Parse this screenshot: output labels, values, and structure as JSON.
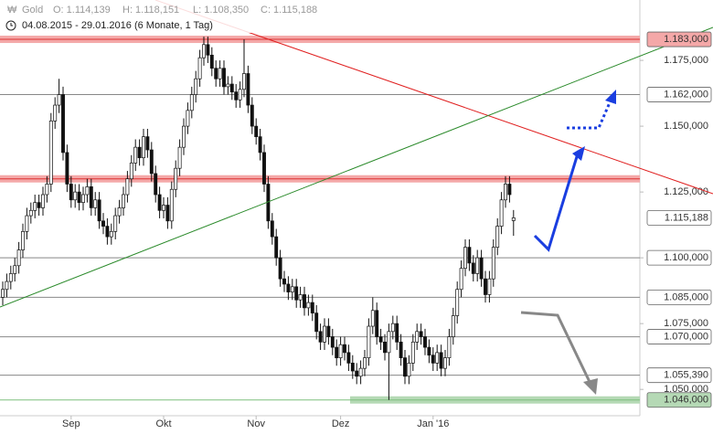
{
  "chart_data": {
    "type": "candlestick",
    "title": "Gold",
    "quote": [
      "O: 1.114,139",
      "H: 1.118,151",
      "L: 1.108,350",
      "C: 1.115,188"
    ],
    "subtitle": "04.08.2015 - 29.01.2016 (6 Monate, 1 Tag)",
    "categories": [
      null,
      null,
      null,
      null,
      null,
      null,
      null,
      null,
      null,
      null,
      null,
      null,
      null,
      null,
      null,
      null,
      null,
      "Sep",
      null,
      null,
      null,
      null,
      null,
      null,
      null,
      null,
      null,
      null,
      null,
      null,
      null,
      null,
      null,
      null,
      null,
      null,
      null,
      null,
      null,
      null,
      "Okt",
      null,
      null,
      null,
      null,
      null,
      null,
      null,
      null,
      null,
      null,
      null,
      null,
      null,
      null,
      null,
      null,
      null,
      null,
      null,
      null,
      null,
      null,
      "Nov",
      null,
      null,
      null,
      null,
      null,
      null,
      null,
      null,
      null,
      null,
      null,
      null,
      null,
      null,
      null,
      null,
      null,
      null,
      null,
      null,
      "Dez",
      null,
      null,
      null,
      null,
      null,
      null,
      null,
      null,
      null,
      null,
      null,
      null,
      null,
      null,
      null,
      null,
      null,
      null,
      null,
      null,
      null,
      null,
      "Jan '16",
      null,
      null,
      null,
      null,
      null,
      null,
      null,
      null,
      null,
      null,
      null,
      null,
      null,
      null,
      null,
      null,
      null,
      null,
      null,
      null
    ],
    "open": [
      1085,
      1088,
      1091,
      1094,
      1097,
      1103,
      1110,
      1116,
      1118,
      1121,
      1119,
      1124,
      1128,
      1152,
      1158,
      1162,
      1140,
      1128,
      1122,
      1125,
      1121,
      1124,
      1127,
      1119,
      1122,
      1114,
      1112,
      1108,
      1110,
      1116,
      1119,
      1124,
      1130,
      1136,
      1142,
      1138,
      1146,
      1141,
      1132,
      1124,
      1118,
      1120,
      1114,
      1126,
      1134,
      1142,
      1150,
      1156,
      1162,
      1168,
      1176,
      1181,
      1177,
      1172,
      1168,
      1172,
      1165,
      1166,
      1163,
      1160,
      1164,
      1170,
      1158,
      1150,
      1146,
      1140,
      1128,
      1114,
      1108,
      1100,
      1092,
      1090,
      1087,
      1089,
      1084,
      1086,
      1081,
      1083,
      1079,
      1072,
      1068,
      1074,
      1070,
      1066,
      1062,
      1067,
      1064,
      1060,
      1057,
      1055,
      1058,
      1062,
      1074,
      1080,
      1070,
      1068,
      1064,
      1072,
      1075,
      1068,
      1062,
      1055,
      1060,
      1068,
      1072,
      1070,
      1066,
      1063,
      1060,
      1064,
      1058,
      1062,
      1070,
      1078,
      1088,
      1096,
      1104,
      1098,
      1094,
      1100,
      1092,
      1086,
      1092,
      1104,
      1112,
      1122,
      1128,
      1114.139
    ],
    "high": [
      1091,
      1094,
      1097,
      1100,
      1106,
      1113,
      1119,
      1121,
      1124,
      1124,
      1127,
      1131,
      1155,
      1161,
      1168,
      1165,
      1143,
      1131,
      1128,
      1128,
      1127,
      1130,
      1130,
      1125,
      1125,
      1117,
      1115,
      1113,
      1119,
      1122,
      1127,
      1133,
      1139,
      1145,
      1145,
      1149,
      1149,
      1144,
      1135,
      1127,
      1123,
      1123,
      1129,
      1137,
      1145,
      1153,
      1159,
      1165,
      1171,
      1179,
      1184,
      1184,
      1180,
      1175,
      1175,
      1175,
      1169,
      1169,
      1166,
      1167,
      1183,
      1173,
      1161,
      1153,
      1149,
      1143,
      1131,
      1117,
      1111,
      1103,
      1095,
      1093,
      1092,
      1092,
      1089,
      1089,
      1086,
      1086,
      1082,
      1075,
      1077,
      1077,
      1073,
      1069,
      1070,
      1070,
      1067,
      1063,
      1060,
      1061,
      1065,
      1077,
      1085,
      1083,
      1073,
      1071,
      1075,
      1078,
      1078,
      1071,
      1065,
      1063,
      1071,
      1075,
      1075,
      1073,
      1069,
      1066,
      1067,
      1067,
      1065,
      1073,
      1081,
      1091,
      1099,
      1107,
      1107,
      1101,
      1103,
      1103,
      1095,
      1095,
      1107,
      1115,
      1125,
      1131,
      1131,
      1118.151
    ],
    "low": [
      1082,
      1085,
      1088,
      1091,
      1094,
      1100,
      1107,
      1113,
      1115,
      1116,
      1116,
      1121,
      1125,
      1149,
      1155,
      1137,
      1125,
      1119,
      1119,
      1118,
      1118,
      1121,
      1116,
      1116,
      1111,
      1109,
      1105,
      1105,
      1107,
      1113,
      1116,
      1121,
      1127,
      1133,
      1135,
      1135,
      1138,
      1129,
      1121,
      1115,
      1115,
      1111,
      1111,
      1123,
      1131,
      1139,
      1147,
      1153,
      1159,
      1165,
      1173,
      1174,
      1169,
      1165,
      1165,
      1162,
      1162,
      1160,
      1157,
      1157,
      1161,
      1155,
      1147,
      1143,
      1137,
      1125,
      1111,
      1105,
      1097,
      1089,
      1087,
      1084,
      1084,
      1081,
      1081,
      1078,
      1078,
      1076,
      1069,
      1065,
      1065,
      1067,
      1063,
      1059,
      1059,
      1061,
      1057,
      1054,
      1052,
      1052,
      1055,
      1059,
      1071,
      1067,
      1065,
      1061,
      1046,
      1069,
      1065,
      1059,
      1052,
      1052,
      1057,
      1065,
      1067,
      1063,
      1060,
      1057,
      1057,
      1055,
      1055,
      1059,
      1067,
      1075,
      1085,
      1093,
      1095,
      1091,
      1091,
      1089,
      1083,
      1083,
      1089,
      1101,
      1109,
      1119,
      1121,
      1108.35
    ],
    "close": [
      1088,
      1091,
      1094,
      1097,
      1103,
      1110,
      1116,
      1118,
      1121,
      1119,
      1124,
      1128,
      1152,
      1158,
      1162,
      1140,
      1128,
      1122,
      1125,
      1121,
      1124,
      1127,
      1119,
      1122,
      1114,
      1112,
      1108,
      1110,
      1116,
      1119,
      1124,
      1130,
      1136,
      1142,
      1138,
      1146,
      1141,
      1132,
      1124,
      1118,
      1120,
      1114,
      1126,
      1134,
      1142,
      1150,
      1156,
      1162,
      1168,
      1176,
      1181,
      1177,
      1172,
      1168,
      1172,
      1165,
      1166,
      1163,
      1160,
      1164,
      1170,
      1158,
      1150,
      1146,
      1140,
      1128,
      1114,
      1108,
      1100,
      1092,
      1090,
      1087,
      1089,
      1084,
      1086,
      1081,
      1083,
      1079,
      1072,
      1068,
      1074,
      1070,
      1066,
      1062,
      1067,
      1064,
      1060,
      1057,
      1055,
      1058,
      1062,
      1074,
      1080,
      1070,
      1068,
      1064,
      1072,
      1075,
      1068,
      1062,
      1055,
      1060,
      1068,
      1072,
      1070,
      1066,
      1063,
      1060,
      1064,
      1058,
      1062,
      1070,
      1078,
      1088,
      1096,
      1104,
      1098,
      1094,
      1100,
      1092,
      1086,
      1092,
      1104,
      1112,
      1122,
      1128,
      1124,
      1115.188
    ],
    "ylim": [
      1040,
      1191
    ],
    "yticks": [
      {
        "value": 1175,
        "label": "1.175,000"
      },
      {
        "value": 1150,
        "label": "1.150,000"
      },
      {
        "value": 1125,
        "label": "1.125,000"
      },
      {
        "value": 1100,
        "label": "1.100,000"
      },
      {
        "value": 1075,
        "label": "1.075,000"
      },
      {
        "value": 1050,
        "label": "1.050,000"
      }
    ],
    "levels": [
      {
        "value": 1183,
        "label": "1.183,000",
        "color": "#f4a8a8"
      },
      {
        "value": 1162,
        "label": "1.162,000",
        "color": "#888888"
      },
      {
        "value": 1130,
        "color": "#f4a8a8"
      },
      {
        "value": 1115.188,
        "label": "1.115,188",
        "color": "#ffffff"
      },
      {
        "value": 1100,
        "label": "1.100,000",
        "color": "#888888"
      },
      {
        "value": 1085,
        "label": "1.085,000",
        "color": "#888888"
      },
      {
        "value": 1070,
        "label": "1.070,000",
        "color": "#888888"
      },
      {
        "value": 1055.39,
        "label": "1.055,390",
        "color": "#888888"
      },
      {
        "value": 1046,
        "label": "1.046,000",
        "color": "#b5d9b5"
      }
    ]
  }
}
